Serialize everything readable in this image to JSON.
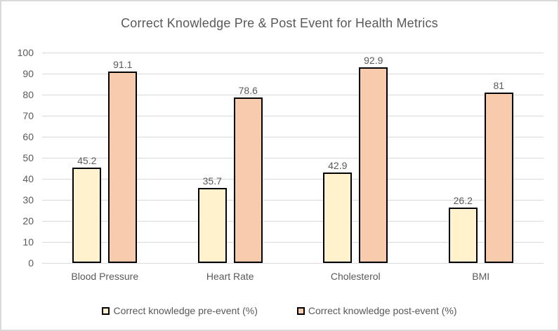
{
  "chart_data": {
    "type": "bar",
    "title": "Correct Knowledge Pre & Post Event for Health Metrics",
    "categories": [
      "Blood Pressure",
      "Heart Rate",
      "Cholesterol",
      "BMI"
    ],
    "series": [
      {
        "name": "Correct knowledge pre-event (%)",
        "values": [
          45.2,
          35.7,
          42.9,
          26.2
        ],
        "fill": "#FFF2CC",
        "border": "#000000"
      },
      {
        "name": "Correct knowledge post-event (%)",
        "values": [
          91.1,
          78.6,
          92.9,
          81
        ],
        "fill": "#F8CBAD",
        "border": "#000000"
      }
    ],
    "xlabel": "",
    "ylabel": "",
    "ylim": [
      0,
      100
    ],
    "yticks": [
      0,
      10,
      20,
      30,
      40,
      50,
      60,
      70,
      80,
      90,
      100
    ],
    "grid": true,
    "data_labels": true,
    "legend_position": "bottom"
  },
  "colors": {
    "pre_event_fill": "#FFF2CC",
    "post_event_fill": "#F8CBAD",
    "bar_border": "#000000",
    "gridline": "#D9D9D9",
    "chart_border": "#D9D9D9",
    "text": "#595959",
    "background": "#FFFFFF"
  }
}
